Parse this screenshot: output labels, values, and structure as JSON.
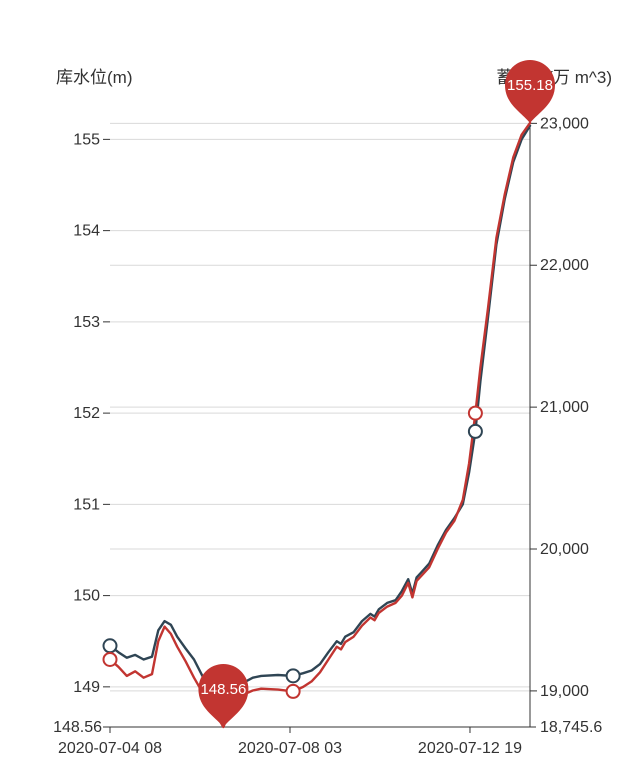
{
  "page": {
    "background": "#ffffff"
  },
  "colors": {
    "level_series": "#c23531",
    "storage_series": "#2f4554",
    "pin": "#c23531",
    "pin_text": "#ffffff",
    "axis_line": "#333333",
    "tick_text": "#333333",
    "grid": "#d9d9d9",
    "marker_fill": "#ffffff"
  },
  "chart_data": {
    "type": "line",
    "title": "",
    "legend": [],
    "grid_on": true,
    "x_axis": {
      "ticks": [
        {
          "label": "2020-07-04 08",
          "pos": 0
        },
        {
          "label": "2020-07-08 03",
          "pos": 0.4286
        },
        {
          "label": "2020-07-12 19",
          "pos": 0.8571
        }
      ]
    },
    "y_axis_left": {
      "label": "库水位(m)",
      "min": 148.56,
      "max": 155.3,
      "min_label": "148.56",
      "tick_values": [
        149,
        150,
        151,
        152,
        153,
        154,
        155
      ],
      "tick_labels": [
        "149",
        "150",
        "151",
        "152",
        "153",
        "154",
        "155"
      ]
    },
    "y_axis_right": {
      "label": "蓄水量(万 m^3)",
      "min": 18745.6,
      "max": 23080,
      "min_label": "18,745.6",
      "tick_values": [
        19000,
        20000,
        21000,
        22000,
        23000
      ],
      "tick_labels": [
        "19,000",
        "20,000",
        "21,000",
        "22,000",
        "23,000"
      ]
    },
    "series": [
      {
        "name": "蓄水量",
        "axis": "right",
        "color": "#2f4554",
        "marker_fx": [
          0,
          0.436,
          0.87
        ],
        "points": [
          [
            0,
            19318
          ],
          [
            0.02,
            19273
          ],
          [
            0.04,
            19234
          ],
          [
            0.06,
            19254
          ],
          [
            0.08,
            19221
          ],
          [
            0.1,
            19241
          ],
          [
            0.115,
            19427
          ],
          [
            0.13,
            19492
          ],
          [
            0.145,
            19466
          ],
          [
            0.16,
            19382
          ],
          [
            0.18,
            19299
          ],
          [
            0.2,
            19221
          ],
          [
            0.22,
            19106
          ],
          [
            0.24,
            18996
          ],
          [
            0.26,
            18900
          ],
          [
            0.27,
            18848
          ],
          [
            0.28,
            18887
          ],
          [
            0.3,
            18996
          ],
          [
            0.32,
            19061
          ],
          [
            0.34,
            19093
          ],
          [
            0.36,
            19106
          ],
          [
            0.4,
            19112
          ],
          [
            0.436,
            19106
          ],
          [
            0.46,
            19125
          ],
          [
            0.48,
            19144
          ],
          [
            0.5,
            19189
          ],
          [
            0.52,
            19273
          ],
          [
            0.54,
            19350
          ],
          [
            0.55,
            19331
          ],
          [
            0.56,
            19382
          ],
          [
            0.58,
            19414
          ],
          [
            0.6,
            19492
          ],
          [
            0.62,
            19543
          ],
          [
            0.63,
            19524
          ],
          [
            0.64,
            19575
          ],
          [
            0.66,
            19620
          ],
          [
            0.68,
            19639
          ],
          [
            0.695,
            19704
          ],
          [
            0.71,
            19787
          ],
          [
            0.72,
            19685
          ],
          [
            0.73,
            19800
          ],
          [
            0.74,
            19832
          ],
          [
            0.76,
            19897
          ],
          [
            0.78,
            20025
          ],
          [
            0.8,
            20135
          ],
          [
            0.82,
            20218
          ],
          [
            0.84,
            20315
          ],
          [
            0.855,
            20540
          ],
          [
            0.87,
            20829
          ],
          [
            0.882,
            21183
          ],
          [
            0.9,
            21633
          ],
          [
            0.92,
            22147
          ],
          [
            0.94,
            22469
          ],
          [
            0.96,
            22726
          ],
          [
            0.98,
            22887
          ],
          [
            1.0,
            22983
          ]
        ]
      },
      {
        "name": "库水位",
        "axis": "left",
        "color": "#c23531",
        "marker_fx": [
          0,
          0.436,
          0.87
        ],
        "max_pin": {
          "label": "155.18",
          "fx": 1.0,
          "value": 155.18
        },
        "min_pin": {
          "label": "148.56",
          "fx": 0.27,
          "value": 148.56
        },
        "points": [
          [
            0,
            149.3
          ],
          [
            0.02,
            149.22
          ],
          [
            0.04,
            149.12
          ],
          [
            0.06,
            149.17
          ],
          [
            0.08,
            149.1
          ],
          [
            0.1,
            149.14
          ],
          [
            0.115,
            149.5
          ],
          [
            0.13,
            149.66
          ],
          [
            0.145,
            149.58
          ],
          [
            0.16,
            149.44
          ],
          [
            0.18,
            149.28
          ],
          [
            0.2,
            149.1
          ],
          [
            0.22,
            148.94
          ],
          [
            0.24,
            148.78
          ],
          [
            0.26,
            148.64
          ],
          [
            0.27,
            148.56
          ],
          [
            0.28,
            148.68
          ],
          [
            0.3,
            148.84
          ],
          [
            0.32,
            148.92
          ],
          [
            0.34,
            148.96
          ],
          [
            0.36,
            148.98
          ],
          [
            0.4,
            148.97
          ],
          [
            0.436,
            148.95
          ],
          [
            0.46,
            149.0
          ],
          [
            0.48,
            149.06
          ],
          [
            0.5,
            149.16
          ],
          [
            0.52,
            149.3
          ],
          [
            0.54,
            149.44
          ],
          [
            0.55,
            149.41
          ],
          [
            0.56,
            149.49
          ],
          [
            0.58,
            149.55
          ],
          [
            0.6,
            149.67
          ],
          [
            0.62,
            149.76
          ],
          [
            0.63,
            149.73
          ],
          [
            0.64,
            149.81
          ],
          [
            0.66,
            149.88
          ],
          [
            0.68,
            149.92
          ],
          [
            0.695,
            150.0
          ],
          [
            0.71,
            150.14
          ],
          [
            0.72,
            149.98
          ],
          [
            0.73,
            150.16
          ],
          [
            0.74,
            150.21
          ],
          [
            0.76,
            150.31
          ],
          [
            0.78,
            150.51
          ],
          [
            0.8,
            150.69
          ],
          [
            0.82,
            150.82
          ],
          [
            0.84,
            151.05
          ],
          [
            0.855,
            151.45
          ],
          [
            0.87,
            152.0
          ],
          [
            0.882,
            152.5
          ],
          [
            0.9,
            153.15
          ],
          [
            0.92,
            153.92
          ],
          [
            0.94,
            154.4
          ],
          [
            0.96,
            154.8
          ],
          [
            0.98,
            155.05
          ],
          [
            1.0,
            155.18
          ]
        ]
      }
    ]
  }
}
